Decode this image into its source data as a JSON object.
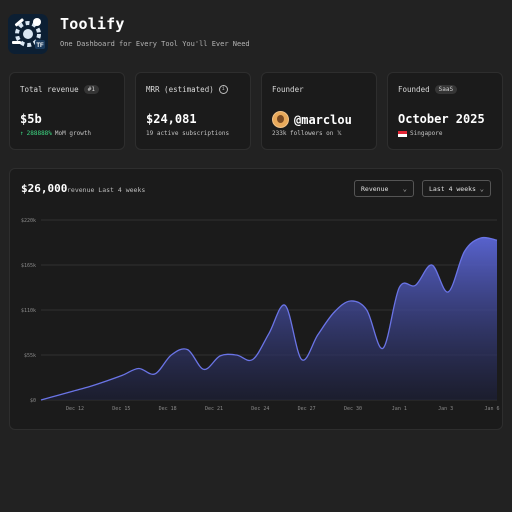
{
  "app": {
    "title": "Toolify",
    "subtitle": "One Dashboard for Every Tool You'll Ever Need",
    "logo_text": "TF"
  },
  "cards": {
    "revenue": {
      "label": "Total revenue",
      "badge": "#1",
      "value": "$5b",
      "growth": "288888%",
      "growth_suffix": "MoM growth"
    },
    "mrr": {
      "label": "MRR (estimated)",
      "value": "$24,081",
      "sub": "19 active subscriptions"
    },
    "founder": {
      "label": "Founder",
      "handle": "@marclou",
      "followers": "233k followers on 𝕏"
    },
    "founded": {
      "label": "Founded",
      "badge": "SaaS",
      "value": "October 2025",
      "country": "Singapore"
    }
  },
  "chart_panel": {
    "total": "$26,000",
    "caption": "revenue Last 4 weeks",
    "metric_select": "Revenue",
    "range_select": "Last 4 weeks"
  },
  "colors": {
    "accent": "#5b66d6",
    "growth": "#3ddc84",
    "background": "#222222",
    "card": "#1b1b1b"
  },
  "chart_data": {
    "type": "area",
    "x": [
      "Dec 10",
      "Dec 11",
      "Dec 12",
      "Dec 13",
      "Dec 14",
      "Dec 15",
      "Dec 16",
      "Dec 17",
      "Dec 18",
      "Dec 19",
      "Dec 20",
      "Dec 21",
      "Dec 22",
      "Dec 23",
      "Dec 24",
      "Dec 25",
      "Dec 26",
      "Dec 27",
      "Dec 28",
      "Dec 29",
      "Dec 30",
      "Dec 31",
      "Jan 1",
      "Jan 2",
      "Jan 3",
      "Jan 4",
      "Jan 5",
      "Jan 6",
      "Jan 7"
    ],
    "values": [
      0,
      10,
      20,
      30,
      42,
      55,
      70,
      58,
      100,
      112,
      68,
      98,
      100,
      90,
      148,
      210,
      90,
      145,
      195,
      220,
      200,
      115,
      250,
      255,
      300,
      240,
      330,
      360,
      355
    ],
    "x_ticks": [
      "Dec 12",
      "Dec 15",
      "Dec 18",
      "Dec 21",
      "Dec 24",
      "Dec 27",
      "Dec 30",
      "Jan 1",
      "Jan 3",
      "Jan 6"
    ],
    "y_ticks": [
      "$0",
      "$55k",
      "$110k",
      "$165k",
      "$220k"
    ],
    "ylim": [
      0,
      400
    ],
    "grid": true,
    "legend": "none"
  }
}
